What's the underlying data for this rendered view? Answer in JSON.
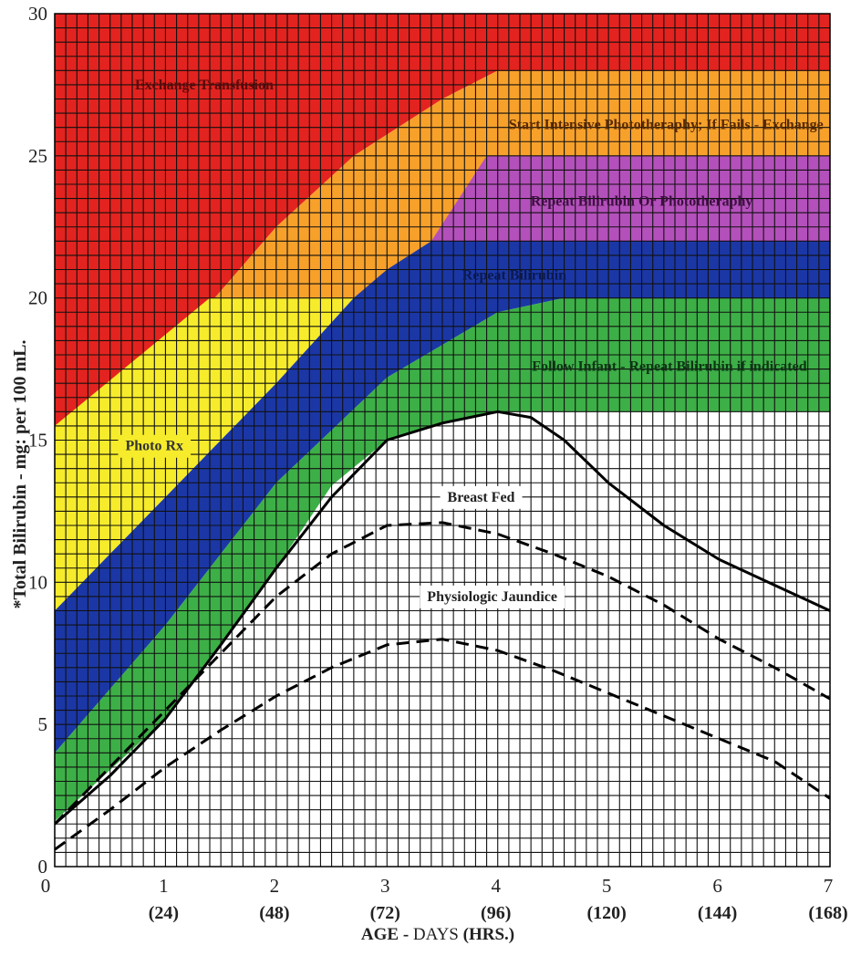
{
  "chart_data": {
    "type": "area",
    "title": "",
    "ylabel": "*Total Bilirubin - mg: per 100 mL.",
    "xlabel_parts": [
      "AGE",
      " - ",
      "DAYS",
      " (HRS.)"
    ],
    "xlim": [
      0,
      7
    ],
    "ylim": [
      0,
      30
    ],
    "grid": true,
    "y_ticks": [
      "0",
      "5",
      "10",
      "15",
      "20",
      "25",
      "30"
    ],
    "x_ticks": [
      {
        "x": 1,
        "day": "1",
        "hrs": "(24)"
      },
      {
        "x": 2,
        "day": "2",
        "hrs": "(48)"
      },
      {
        "x": 3,
        "day": "3",
        "hrs": "(72)"
      },
      {
        "x": 4,
        "day": "4",
        "hrs": "(96)"
      },
      {
        "x": 5,
        "day": "5",
        "hrs": "(120)"
      },
      {
        "x": 6,
        "day": "6",
        "hrs": "(144)"
      },
      {
        "x": 7,
        "day": "7",
        "hrs": "(168)"
      }
    ],
    "zones": [
      {
        "name": "Exchange Transfusion",
        "color": "#e3231f",
        "upper": [
          [
            0,
            30
          ],
          [
            7,
            30
          ]
        ],
        "lower": [
          [
            0,
            15.5
          ],
          [
            1,
            18
          ],
          [
            2,
            22.5
          ],
          [
            2.7,
            25
          ],
          [
            3.5,
            27
          ],
          [
            4,
            28
          ],
          [
            7,
            28
          ]
        ]
      },
      {
        "name": "Start Intensive Phototheraphy; If Fails - Exchange",
        "color": "#f7a12b",
        "upper": [
          [
            0,
            15.5
          ],
          [
            1,
            18
          ],
          [
            2,
            22.5
          ],
          [
            2.7,
            25
          ],
          [
            3.5,
            27
          ],
          [
            4,
            28
          ],
          [
            7,
            28
          ]
        ],
        "lower": [
          [
            0,
            15.5
          ],
          [
            1.4,
            20
          ],
          [
            2.8,
            20
          ],
          [
            3.4,
            22
          ],
          [
            3.9,
            24.7
          ],
          [
            4,
            25
          ],
          [
            7,
            25
          ]
        ]
      },
      {
        "name": "Photo Rx",
        "color": "#f6ec2b",
        "upper": [
          [
            0,
            15.5
          ],
          [
            1.4,
            20
          ],
          [
            2.8,
            20
          ]
        ],
        "lower": [
          [
            0,
            9
          ],
          [
            1,
            13
          ],
          [
            2,
            17
          ],
          [
            2.7,
            20
          ],
          [
            2.8,
            20
          ]
        ]
      },
      {
        "name": "Repeat Bilirubin Or Phototheraphy",
        "color": "#b450bb",
        "upper": [
          [
            3.9,
            25
          ],
          [
            7,
            25
          ]
        ],
        "lower": [
          [
            3.4,
            22
          ],
          [
            7,
            22
          ]
        ]
      },
      {
        "name": "Repeat Bilirubin",
        "color": "#1b37a6",
        "upper": [
          [
            0,
            9
          ],
          [
            1,
            13
          ],
          [
            2,
            17
          ],
          [
            2.7,
            20
          ],
          [
            3,
            21
          ],
          [
            3.4,
            22
          ],
          [
            7,
            22
          ]
        ],
        "lower": [
          [
            0,
            4
          ],
          [
            1,
            8.5
          ],
          [
            2,
            13.5
          ],
          [
            3,
            17.2
          ],
          [
            4,
            19.5
          ],
          [
            4.6,
            20
          ],
          [
            7,
            20
          ]
        ]
      },
      {
        "name": "Follow Infant - Repeat Bilirubin if indicated",
        "color": "#3daf47",
        "upper": [
          [
            0,
            4
          ],
          [
            1,
            8.5
          ],
          [
            2,
            13.5
          ],
          [
            3,
            17.2
          ],
          [
            4,
            19.5
          ],
          [
            4.6,
            20
          ],
          [
            7,
            20
          ]
        ],
        "lower": [
          [
            0,
            1.6
          ],
          [
            1,
            5.2
          ],
          [
            2,
            10.5
          ],
          [
            2.5,
            13.4
          ],
          [
            3,
            15
          ],
          [
            3.5,
            15.6
          ],
          [
            4,
            16
          ],
          [
            7,
            16
          ]
        ]
      }
    ],
    "series": [
      {
        "name": "Breast Fed",
        "style": "solid",
        "x": [
          0,
          0.5,
          1,
          1.5,
          2,
          2.5,
          3,
          3.5,
          4,
          4.3,
          4.6,
          5,
          5.5,
          6,
          6.5,
          7
        ],
        "y": [
          1.5,
          3.2,
          5.2,
          7.8,
          10.5,
          13,
          15,
          15.6,
          16,
          15.8,
          15,
          13.5,
          12,
          10.8,
          9.9,
          9
        ]
      },
      {
        "name": "Physiologic Jaundice",
        "style": "dashed",
        "x": [
          0,
          0.5,
          1,
          1.5,
          2,
          2.5,
          3,
          3.5,
          4,
          4.5,
          5,
          5.5,
          6,
          6.5,
          7
        ],
        "y": [
          1.5,
          3.5,
          5.5,
          7.5,
          9.5,
          11,
          12,
          12.1,
          11.7,
          11,
          10.2,
          9.2,
          8,
          7,
          5.9
        ]
      },
      {
        "name": "",
        "style": "dashed",
        "x": [
          0,
          0.5,
          1,
          1.5,
          2,
          2.5,
          3,
          3.5,
          4,
          4.5,
          5,
          5.5,
          6,
          6.5,
          7
        ],
        "y": [
          0.6,
          2,
          3.5,
          4.8,
          6,
          7,
          7.8,
          8,
          7.6,
          6.9,
          6.1,
          5.3,
          4.5,
          3.7,
          2.4
        ]
      }
    ],
    "labels": [
      {
        "text": "Exchange Transfusion",
        "x": 1.35,
        "y": 27.5,
        "color": "#5a0a0a",
        "bg": ""
      },
      {
        "text": "Start Intensive Phototheraphy; If Fails - Exchange",
        "x": 5.52,
        "y": 26.1,
        "color": "#5a2a00",
        "bg": ""
      },
      {
        "text": "Repeat Bilirubin Or Phototheraphy",
        "x": 5.3,
        "y": 23.4,
        "color": "#3d1040",
        "bg": ""
      },
      {
        "text": "Repeat Bilirubin",
        "x": 4.15,
        "y": 20.8,
        "color": "#0b1a50",
        "bg": ""
      },
      {
        "text": "Follow Infant - Repeat Bilirubin if indicated",
        "x": 5.55,
        "y": 17.6,
        "color": "#0d3514",
        "bg": ""
      },
      {
        "text": "Photo Rx",
        "x": 0.9,
        "y": 14.8,
        "color": "#333333",
        "bg": "#f6ec2b"
      },
      {
        "text": "Breast Fed",
        "x": 3.85,
        "y": 13.0,
        "color": "#222222",
        "bg": "#ffffff"
      },
      {
        "text": "Physiologic Jaundice",
        "x": 3.95,
        "y": 9.5,
        "color": "#222222",
        "bg": "#ffffff"
      }
    ]
  }
}
